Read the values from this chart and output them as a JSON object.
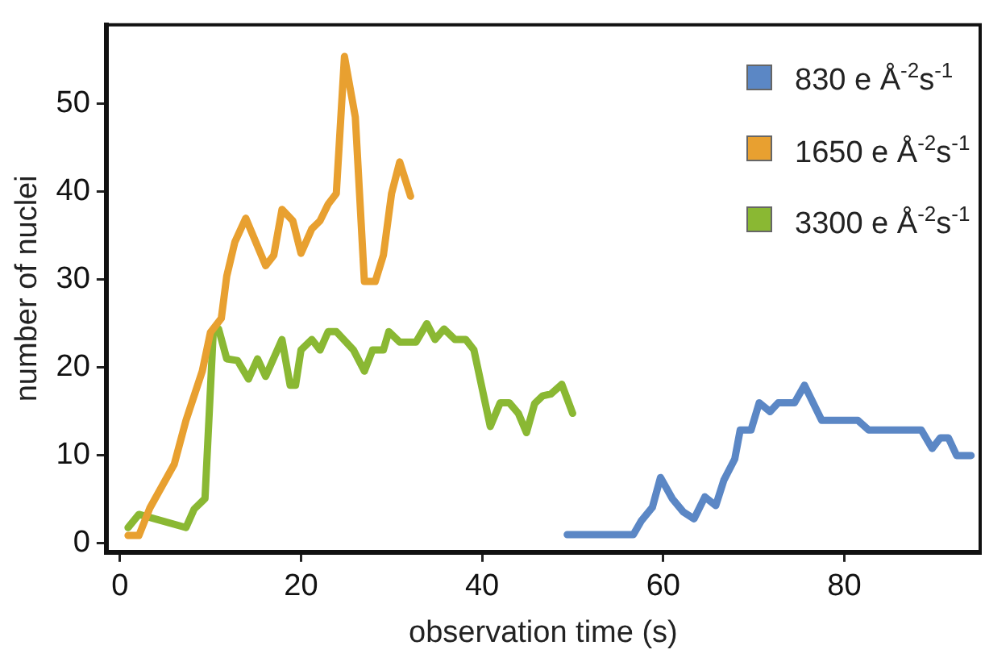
{
  "chart_data": {
    "type": "line",
    "xlabel": "observation time (s)",
    "ylabel": "number of nuclei",
    "xlim": [
      -1.5,
      95
    ],
    "ylim": [
      -1,
      59
    ],
    "xticks": [
      0,
      20,
      40,
      60,
      80
    ],
    "yticks": [
      0,
      10,
      20,
      30,
      40,
      50
    ],
    "grid": false,
    "legend": "top right",
    "marker": "none",
    "line_style": "solid",
    "series": [
      {
        "name": "830 e Å$^{-2}$s$^{-1}$",
        "color": "#5b87c5",
        "x": [
          49.4,
          56.7,
          57.6,
          58.8,
          59.7,
          61,
          62.2,
          63.4,
          64.6,
          65.8,
          66.7,
          67.9,
          68.5,
          69.7,
          70.6,
          71.8,
          72.7,
          74.5,
          75.6,
          77.5,
          81.5,
          82.7,
          88.5,
          89.7,
          90.6,
          91.5,
          92.4,
          94
        ],
        "values": [
          1,
          1,
          2.6,
          4.1,
          7.5,
          5.1,
          3.6,
          2.8,
          5.3,
          4.3,
          7.2,
          9.6,
          12.9,
          12.9,
          16,
          15,
          16,
          16,
          18,
          14,
          14,
          12.9,
          12.9,
          10.8,
          12,
          12,
          10,
          10
        ]
      },
      {
        "name": "1650 e Å$^{-2}$s$^{-1}$",
        "color": "#e8a030",
        "x": [
          0.9,
          2.1,
          3.3,
          6,
          7.3,
          9.1,
          10,
          11.2,
          11.8,
          12.7,
          13.9,
          16.1,
          17,
          17.9,
          19.1,
          20,
          21.2,
          22.1,
          23,
          23.9,
          24.8,
          26,
          27,
          28.2,
          29.1,
          30,
          30.9,
          32.1
        ],
        "values": [
          0.9,
          0.9,
          4,
          9,
          14,
          19.6,
          24,
          25.6,
          30.4,
          34.3,
          37,
          31.6,
          32.8,
          38,
          36.7,
          33,
          35.8,
          36.7,
          38.6,
          39.8,
          55.4,
          48.5,
          29.8,
          29.8,
          32.8,
          39.8,
          43.4,
          39.5
        ]
      },
      {
        "name": "3300 e Å$^{-2}$s$^{-1}$",
        "color": "#8ab833",
        "x": [
          0.9,
          2.1,
          7.3,
          8.2,
          9.4,
          10.3,
          10.9,
          11.8,
          13,
          14.2,
          15.2,
          16.1,
          17.9,
          18.8,
          19.4,
          20,
          21.2,
          22.1,
          23,
          23.9,
          25.8,
          27,
          27.9,
          29.1,
          29.7,
          30.9,
          32.7,
          33.9,
          34.8,
          35.8,
          37,
          38.2,
          39.1,
          40.9,
          42,
          43,
          44,
          44.9,
          45.8,
          46.7,
          47.6,
          48.8,
          50
        ],
        "values": [
          1.8,
          3.3,
          1.8,
          3.9,
          5.1,
          23.8,
          24.4,
          21,
          20.8,
          18.7,
          21,
          19,
          23.2,
          18,
          18,
          22,
          23.2,
          22,
          24.1,
          24.1,
          22,
          19.6,
          22,
          22,
          24.1,
          22.9,
          22.9,
          25,
          23.2,
          24.4,
          23.2,
          23.2,
          22,
          13.3,
          16,
          16,
          14.8,
          12.6,
          15.9,
          16.8,
          17,
          18.1,
          14.8
        ]
      }
    ]
  }
}
